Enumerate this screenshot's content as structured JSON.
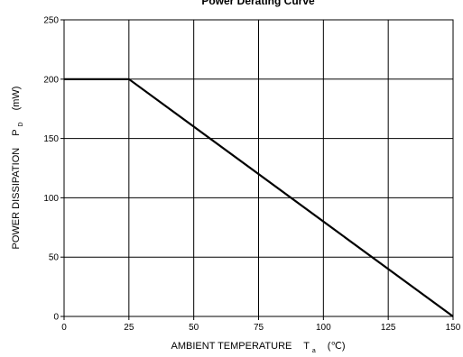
{
  "chart_data": {
    "type": "line",
    "title": "Power Derating Curve",
    "xlabel": {
      "main": "AMBIENT TEMPERATURE",
      "symbol": "T",
      "subscript": "a",
      "unit": "(℃)"
    },
    "ylabel": {
      "main": "POWER DISSIPATION",
      "symbol": "P",
      "subscript": "D",
      "unit": "(mW)"
    },
    "xlim": [
      0,
      150
    ],
    "ylim": [
      0,
      250
    ],
    "xticks": [
      0,
      25,
      50,
      75,
      100,
      125,
      150
    ],
    "yticks": [
      0,
      50,
      100,
      150,
      200,
      250
    ],
    "grid": true,
    "series": [
      {
        "x": [
          0,
          25,
          150
        ],
        "y": [
          200,
          200,
          0
        ]
      }
    ],
    "line_color": "#000000"
  }
}
